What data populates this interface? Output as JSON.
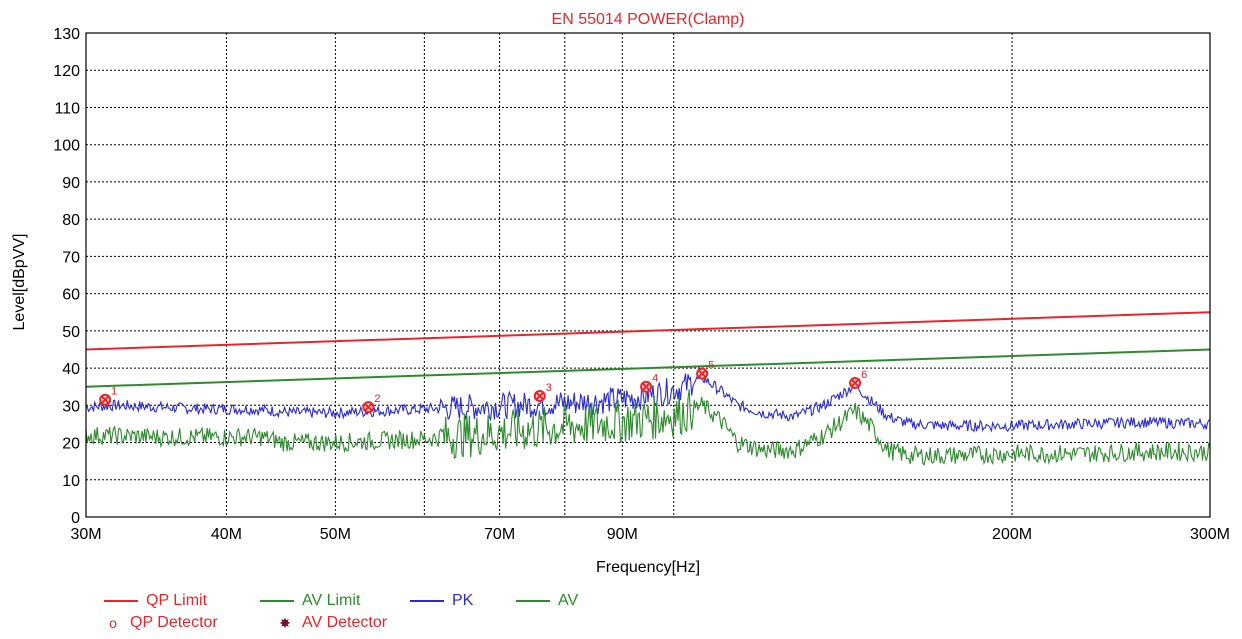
{
  "chart_data": {
    "type": "line",
    "title": "EN 55014 POWER(Clamp)",
    "xlabel": "Frequency[Hz]",
    "ylabel": "Level[dBpVV]",
    "x_scale": "log",
    "xlim": [
      30,
      300
    ],
    "ylim": [
      0,
      130
    ],
    "grid": true,
    "x_ticks": [
      {
        "value": 30,
        "label": "30M"
      },
      {
        "value": 40,
        "label": "40M"
      },
      {
        "value": 50,
        "label": "50M"
      },
      {
        "value": 70,
        "label": "70M"
      },
      {
        "value": 90,
        "label": "90M"
      },
      {
        "value": 200,
        "label": "200M"
      },
      {
        "value": 300,
        "label": "300M"
      }
    ],
    "x_gridlines": [
      30,
      40,
      50,
      60,
      70,
      80,
      90,
      100,
      200,
      300
    ],
    "y_ticks": [
      0,
      10,
      20,
      30,
      40,
      50,
      60,
      70,
      80,
      90,
      100,
      110,
      120,
      130
    ],
    "series": [
      {
        "name": "QP Limit",
        "color": "#e8262a",
        "x": [
          30,
          300
        ],
        "y": [
          45,
          55
        ]
      },
      {
        "name": "AV Limit",
        "color": "#2e8b2e",
        "x": [
          30,
          300
        ],
        "y": [
          35,
          45
        ]
      },
      {
        "name": "PK",
        "color": "#2b2bd6",
        "x": [
          30,
          32,
          35,
          38,
          42,
          46,
          50,
          55,
          60,
          66,
          72,
          78,
          85,
          92,
          98,
          102,
          106,
          110,
          114,
          120,
          128,
          136,
          145,
          150,
          155,
          162,
          175,
          200,
          230,
          260,
          300
        ],
        "y": [
          29.5,
          30,
          29.5,
          29,
          29,
          28,
          28,
          28.5,
          29,
          29.5,
          30,
          30.5,
          31,
          32,
          33.5,
          35,
          37.5,
          34,
          30,
          28,
          27,
          30,
          35.5,
          31,
          27,
          25,
          24.5,
          24.5,
          25,
          25.5,
          25
        ],
        "noise": 1.5
      },
      {
        "name": "AV",
        "color": "#2e8b2e",
        "x": [
          30,
          35,
          40,
          43,
          45,
          50,
          55,
          60,
          66,
          72,
          78,
          85,
          92,
          98,
          102,
          106,
          110,
          114,
          120,
          128,
          136,
          145,
          150,
          155,
          162,
          175,
          200,
          230,
          260,
          300
        ],
        "y": [
          22,
          21.5,
          21.5,
          21.5,
          20,
          20,
          20.5,
          21,
          22,
          23,
          24,
          25,
          26,
          27,
          28,
          30,
          26,
          20,
          18,
          18,
          22,
          28.5,
          24,
          18,
          16.5,
          16.5,
          17,
          17,
          17.5,
          17.5
        ],
        "noise": 2.5
      }
    ],
    "markers": [
      {
        "id": "1",
        "x": 31.2,
        "y": 31.5
      },
      {
        "id": "2",
        "x": 53.5,
        "y": 29.5
      },
      {
        "id": "3",
        "x": 76.0,
        "y": 32.5
      },
      {
        "id": "4",
        "x": 94.5,
        "y": 35.0
      },
      {
        "id": "5",
        "x": 106.0,
        "y": 38.5
      },
      {
        "id": "6",
        "x": 145.0,
        "y": 36.0
      }
    ],
    "legend_position": "bottom-left"
  },
  "legend": {
    "qp_limit": "QP Limit",
    "av_limit": "AV Limit",
    "pk": "PK",
    "av": "AV",
    "qp_detector": "QP Detector",
    "av_detector": "AV Detector",
    "qp_detector_symbol": "o",
    "av_detector_symbol": "✸",
    "colors": {
      "red": "#e8262a",
      "green": "#2e8b2e",
      "blue": "#2b2bd6",
      "maroon": "#7a1030"
    }
  }
}
